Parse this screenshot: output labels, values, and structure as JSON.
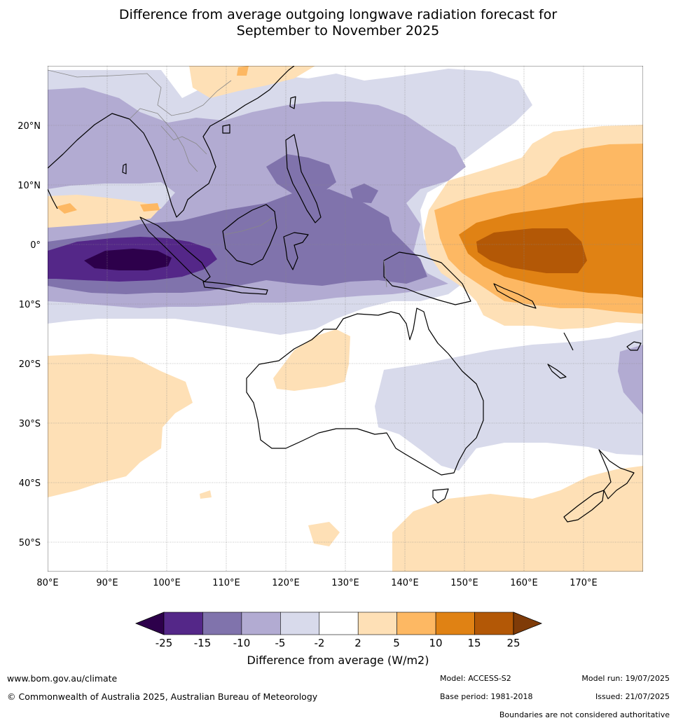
{
  "title": {
    "line1": "Difference from average outgoing longwave radiation forecast for",
    "line2": "September to November 2025"
  },
  "map": {
    "lon_range": [
      80,
      180
    ],
    "lat_range": [
      -55,
      30
    ],
    "lat_ticks": [
      {
        "value": 20,
        "label": "20°N"
      },
      {
        "value": 10,
        "label": "10°N"
      },
      {
        "value": 0,
        "label": "0°"
      },
      {
        "value": -10,
        "label": "10°S"
      },
      {
        "value": -20,
        "label": "20°S"
      },
      {
        "value": -30,
        "label": "30°S"
      },
      {
        "value": -40,
        "label": "40°S"
      },
      {
        "value": -50,
        "label": "50°S"
      }
    ],
    "lon_ticks": [
      {
        "value": 80,
        "label": "80°E"
      },
      {
        "value": 90,
        "label": "90°E"
      },
      {
        "value": 100,
        "label": "100°E"
      },
      {
        "value": 110,
        "label": "110°E"
      },
      {
        "value": 120,
        "label": "120°E"
      },
      {
        "value": 130,
        "label": "130°E"
      },
      {
        "value": 140,
        "label": "140°E"
      },
      {
        "value": 150,
        "label": "150°E"
      },
      {
        "value": 160,
        "label": "160°E"
      },
      {
        "value": 170,
        "label": "170°E"
      }
    ]
  },
  "legend": {
    "title": "Difference from average (W/m2)",
    "tick_labels": [
      "-25",
      "-15",
      "-10",
      "-5",
      "-2",
      "2",
      "5",
      "10",
      "15",
      "25"
    ],
    "bins": [
      {
        "range": "below -25",
        "color": "#2d004b"
      },
      {
        "range": "-25 to -15",
        "color": "#542788"
      },
      {
        "range": "-15 to -10",
        "color": "#8073ac"
      },
      {
        "range": "-10 to -5",
        "color": "#b2abd2"
      },
      {
        "range": "-5 to -2",
        "color": "#d8daeb"
      },
      {
        "range": "-2 to 2",
        "color": "#ffffff"
      },
      {
        "range": "2 to 5",
        "color": "#fee0b6"
      },
      {
        "range": "5 to 10",
        "color": "#fdb863"
      },
      {
        "range": "10 to 15",
        "color": "#e08214"
      },
      {
        "range": "15 to 25",
        "color": "#b35806"
      },
      {
        "range": "above 25",
        "color": "#7f3b08"
      }
    ]
  },
  "footer": {
    "website": "www.bom.gov.au/climate",
    "copyright": "© Commonwealth of Australia 2025, Australian Bureau of Meteorology",
    "model": "Model: ACCESS-S2",
    "model_run": "Model run: 19/07/2025",
    "base_period": "Base period: 1981-2018",
    "issued": "Issued: 21/07/2025",
    "disclaimer": "Boundaries are not considered authoritative"
  }
}
